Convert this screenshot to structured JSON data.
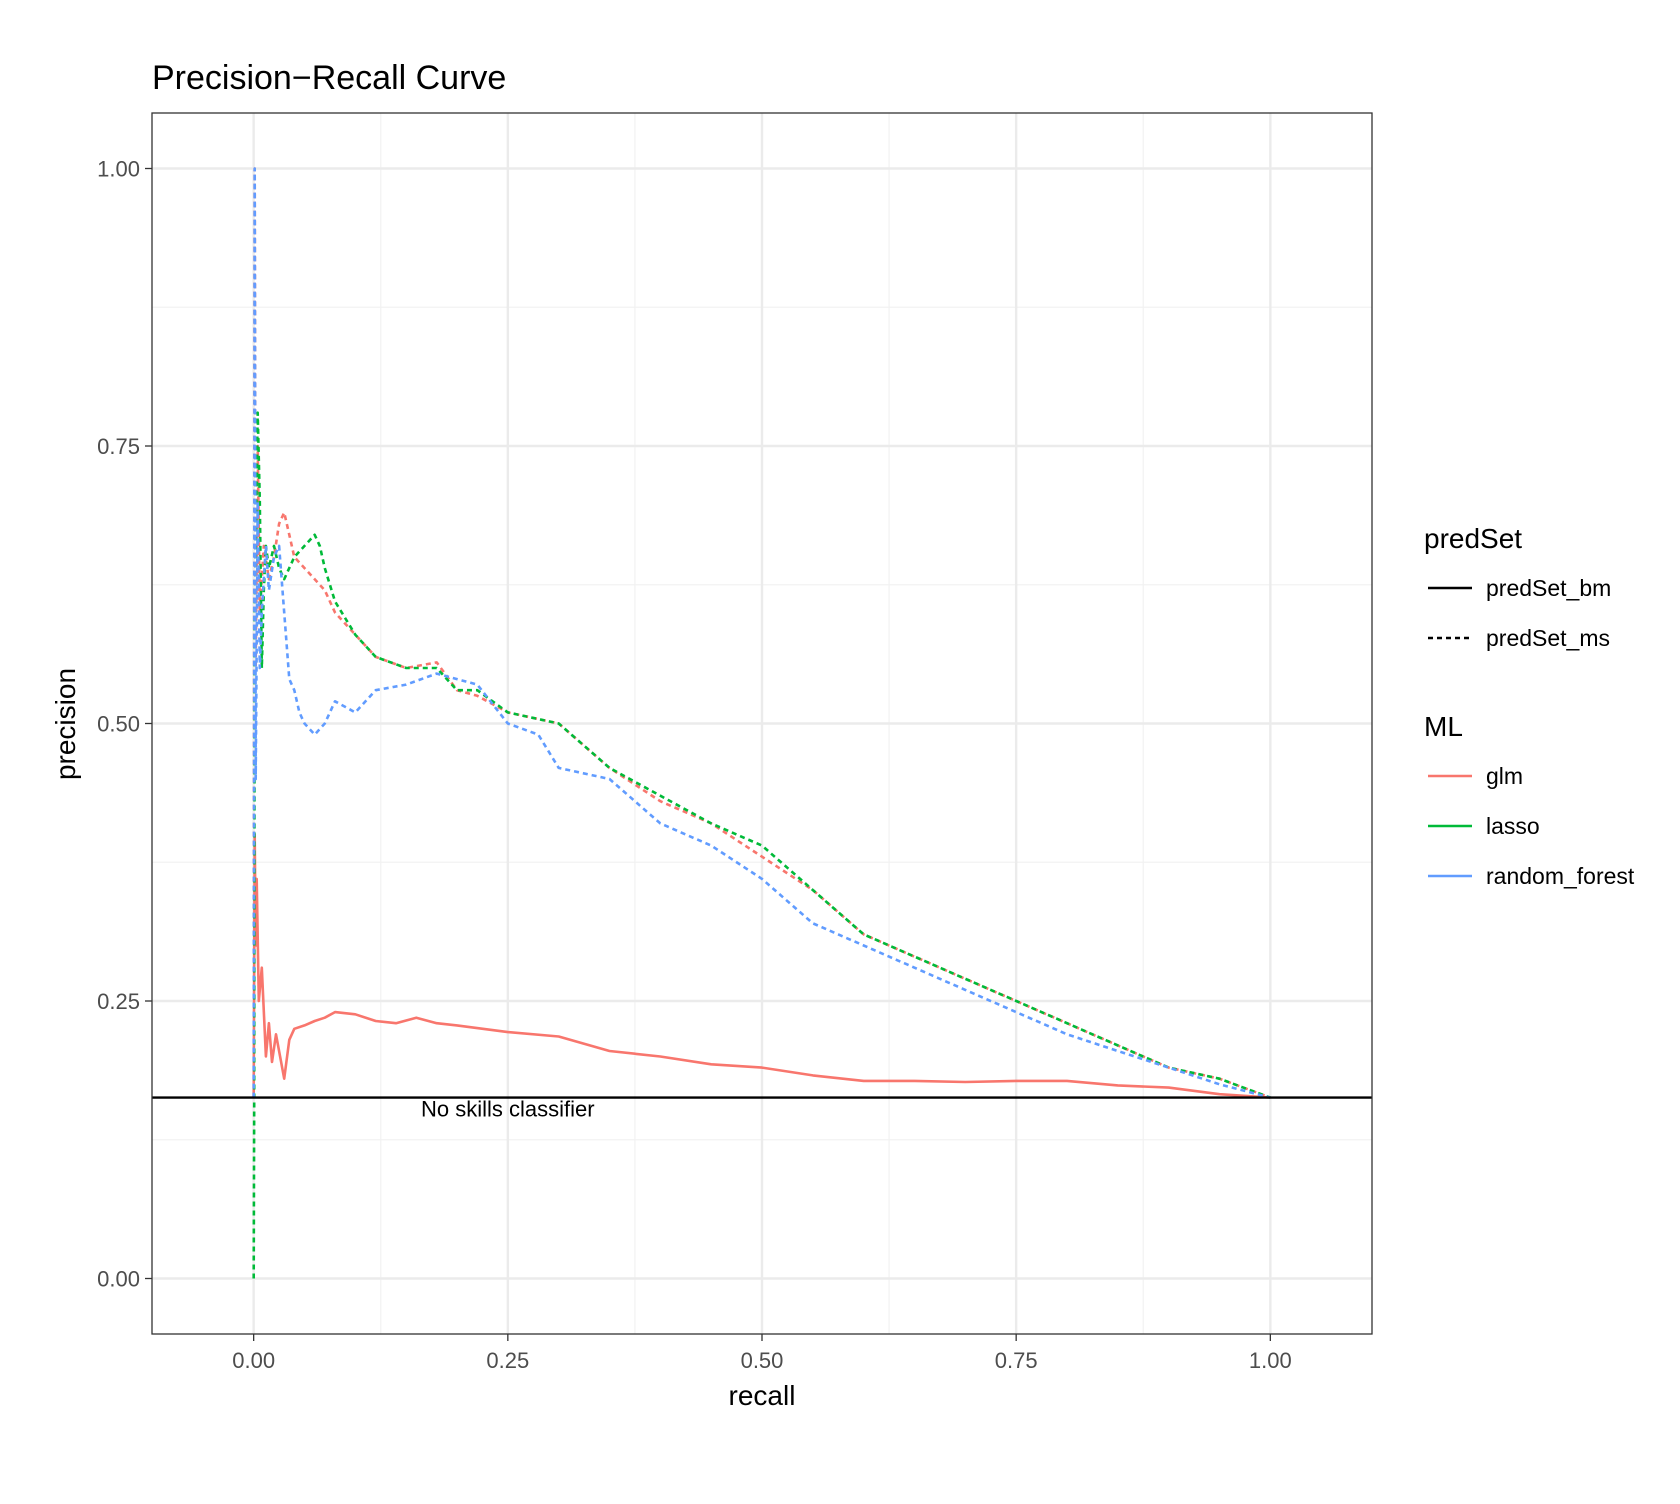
{
  "chart_data": {
    "type": "line",
    "title": "Precision−Recall Curve",
    "xlabel": "recall",
    "ylabel": "precision",
    "xlim": [
      -0.1,
      1.1
    ],
    "ylim": [
      -0.05,
      1.05
    ],
    "x_ticks": [
      "0.00",
      "0.25",
      "0.50",
      "0.75",
      "1.00"
    ],
    "y_ticks": [
      "0.00",
      "0.25",
      "0.50",
      "0.75",
      "1.00"
    ],
    "grid": true,
    "legend_position": "right",
    "legends": [
      {
        "title": "predSet",
        "entries": [
          {
            "label": "predSet_bm",
            "linetype": "solid"
          },
          {
            "label": "predSet_ms",
            "linetype": "dashed"
          }
        ]
      },
      {
        "title": "ML",
        "entries": [
          {
            "label": "glm",
            "color": "#F8766D"
          },
          {
            "label": "lasso",
            "color": "#00BA38"
          },
          {
            "label": "random_forest",
            "color": "#619CFF"
          }
        ]
      }
    ],
    "reference_line": {
      "y": 0.163,
      "label": "No skills classifier",
      "label_x": 0.25,
      "label_y": 0.153,
      "color": "#000000"
    },
    "series": [
      {
        "ml": "glm",
        "predSet": "predSet_bm",
        "color": "#F8766D",
        "linetype": "solid",
        "x": [
          0.0,
          0.001,
          0.002,
          0.003,
          0.005,
          0.008,
          0.012,
          0.015,
          0.018,
          0.022,
          0.026,
          0.03,
          0.035,
          0.04,
          0.05,
          0.06,
          0.07,
          0.08,
          0.1,
          0.12,
          0.14,
          0.16,
          0.18,
          0.2,
          0.25,
          0.3,
          0.35,
          0.4,
          0.45,
          0.5,
          0.55,
          0.6,
          0.65,
          0.7,
          0.75,
          0.8,
          0.85,
          0.9,
          0.95,
          1.0
        ],
        "y": [
          0.163,
          0.4,
          0.3,
          0.36,
          0.25,
          0.28,
          0.2,
          0.23,
          0.195,
          0.22,
          0.2,
          0.18,
          0.215,
          0.225,
          0.228,
          0.232,
          0.235,
          0.24,
          0.238,
          0.232,
          0.23,
          0.235,
          0.23,
          0.228,
          0.222,
          0.218,
          0.205,
          0.2,
          0.193,
          0.19,
          0.183,
          0.178,
          0.178,
          0.177,
          0.178,
          0.178,
          0.174,
          0.172,
          0.166,
          0.163
        ]
      },
      {
        "ml": "glm",
        "predSet": "predSet_ms",
        "color": "#F8766D",
        "linetype": "dashed",
        "x": [
          0.0,
          0.001,
          0.002,
          0.004,
          0.006,
          0.01,
          0.015,
          0.02,
          0.025,
          0.03,
          0.035,
          0.04,
          0.05,
          0.06,
          0.07,
          0.08,
          0.1,
          0.12,
          0.15,
          0.18,
          0.2,
          0.22,
          0.25,
          0.3,
          0.35,
          0.4,
          0.45,
          0.5,
          0.55,
          0.6,
          0.65,
          0.7,
          0.75,
          0.8,
          0.85,
          0.9,
          0.95,
          1.0
        ],
        "y": [
          0.163,
          1.0,
          0.55,
          0.75,
          0.6,
          0.66,
          0.63,
          0.65,
          0.68,
          0.69,
          0.67,
          0.65,
          0.64,
          0.63,
          0.62,
          0.6,
          0.58,
          0.56,
          0.55,
          0.555,
          0.53,
          0.525,
          0.51,
          0.5,
          0.46,
          0.43,
          0.41,
          0.38,
          0.35,
          0.31,
          0.29,
          0.27,
          0.25,
          0.23,
          0.21,
          0.19,
          0.18,
          0.163
        ]
      },
      {
        "ml": "lasso",
        "predSet": "predSet_ms",
        "color": "#00BA38",
        "linetype": "dashed",
        "x": [
          0.0,
          0.0005,
          0.001,
          0.002,
          0.004,
          0.006,
          0.008,
          0.01,
          0.012,
          0.015,
          0.02,
          0.025,
          0.03,
          0.04,
          0.05,
          0.06,
          0.065,
          0.07,
          0.08,
          0.1,
          0.12,
          0.15,
          0.18,
          0.2,
          0.22,
          0.25,
          0.3,
          0.35,
          0.4,
          0.45,
          0.5,
          0.55,
          0.6,
          0.65,
          0.7,
          0.75,
          0.8,
          0.85,
          0.9,
          0.95,
          1.0
        ],
        "y": [
          0.0,
          0.163,
          0.6,
          0.66,
          0.78,
          0.7,
          0.55,
          0.62,
          0.66,
          0.64,
          0.66,
          0.64,
          0.63,
          0.65,
          0.66,
          0.67,
          0.66,
          0.64,
          0.61,
          0.58,
          0.56,
          0.55,
          0.55,
          0.53,
          0.53,
          0.51,
          0.5,
          0.46,
          0.435,
          0.41,
          0.39,
          0.35,
          0.31,
          0.29,
          0.27,
          0.25,
          0.23,
          0.21,
          0.19,
          0.18,
          0.163
        ]
      },
      {
        "ml": "random_forest",
        "predSet": "predSet_ms",
        "color": "#619CFF",
        "linetype": "dashed",
        "x": [
          0.0,
          0.001,
          0.002,
          0.004,
          0.006,
          0.008,
          0.01,
          0.012,
          0.015,
          0.02,
          0.025,
          0.03,
          0.035,
          0.04,
          0.045,
          0.05,
          0.06,
          0.07,
          0.08,
          0.1,
          0.12,
          0.15,
          0.18,
          0.2,
          0.22,
          0.25,
          0.28,
          0.3,
          0.35,
          0.4,
          0.45,
          0.5,
          0.55,
          0.6,
          0.65,
          0.7,
          0.75,
          0.8,
          0.85,
          0.9,
          0.95,
          1.0
        ],
        "y": [
          0.163,
          1.0,
          0.45,
          0.7,
          0.55,
          0.6,
          0.63,
          0.66,
          0.62,
          0.65,
          0.66,
          0.6,
          0.54,
          0.53,
          0.51,
          0.5,
          0.49,
          0.5,
          0.52,
          0.51,
          0.53,
          0.535,
          0.545,
          0.54,
          0.535,
          0.5,
          0.49,
          0.46,
          0.45,
          0.41,
          0.39,
          0.36,
          0.32,
          0.3,
          0.28,
          0.26,
          0.24,
          0.22,
          0.205,
          0.19,
          0.175,
          0.163
        ]
      }
    ]
  }
}
